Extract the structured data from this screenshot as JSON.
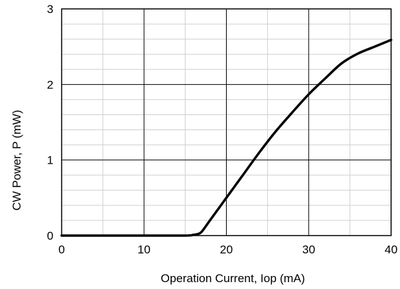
{
  "chart_data": {
    "type": "line",
    "title": "",
    "xlabel": "Operation Current, Iop (mA)",
    "ylabel": "CW Power, P (mW)",
    "xlim": [
      0,
      40
    ],
    "ylim": [
      0,
      3
    ],
    "xticks": [
      "0",
      "10",
      "20",
      "30",
      "40"
    ],
    "yticks": [
      "0",
      "1",
      "2",
      "3"
    ],
    "grid": "major and minor",
    "legend": "none",
    "line_color": "#000000",
    "series": [
      {
        "x": [
          0,
          10,
          15,
          16,
          16.5,
          17,
          18,
          20,
          22,
          24,
          26,
          28,
          30,
          32,
          34,
          36,
          38,
          40
        ],
        "y": [
          0,
          0,
          0,
          0.01,
          0.02,
          0.05,
          0.2,
          0.5,
          0.8,
          1.1,
          1.38,
          1.63,
          1.87,
          2.08,
          2.28,
          2.41,
          2.5,
          2.59
        ]
      }
    ]
  }
}
